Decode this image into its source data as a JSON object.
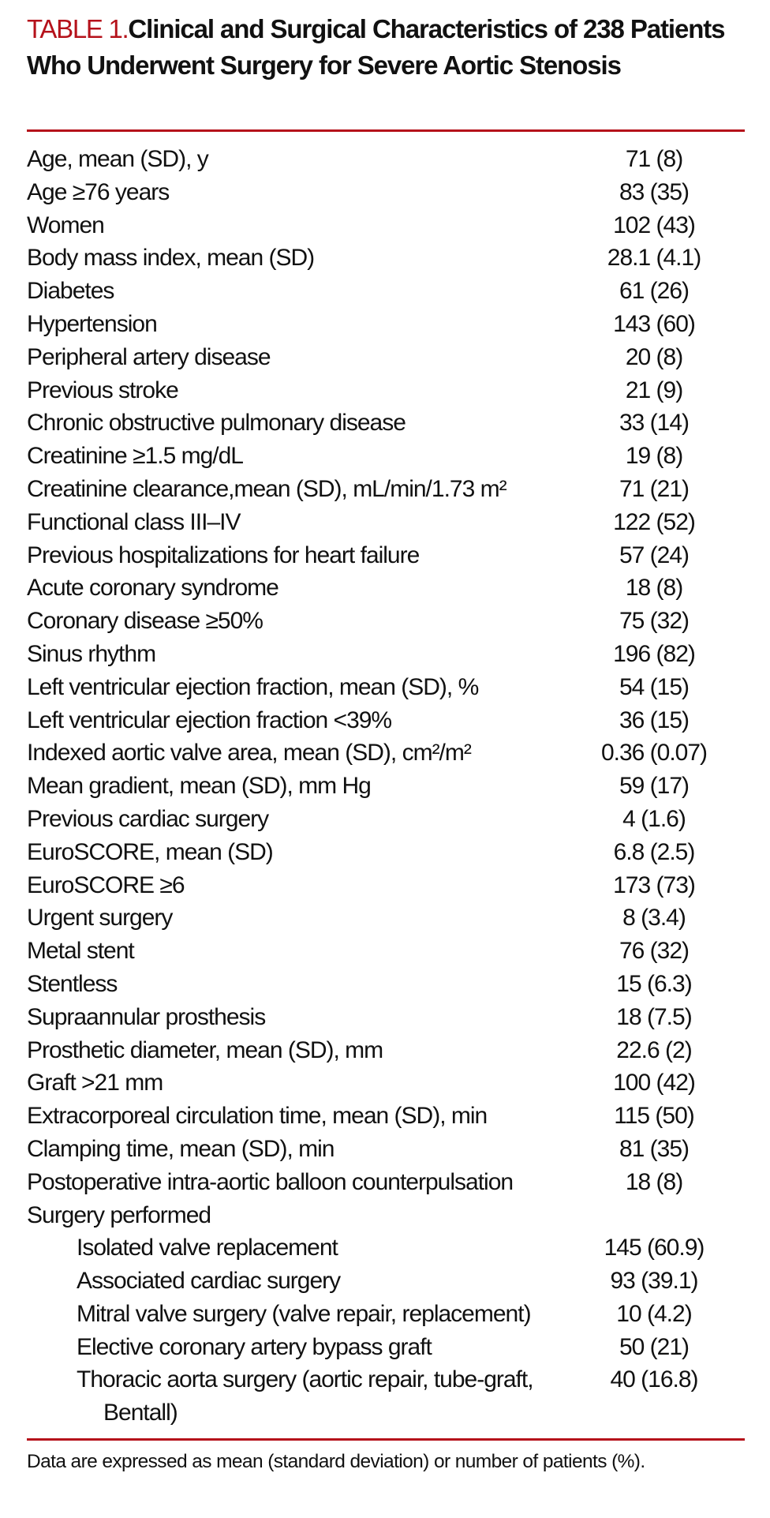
{
  "title": {
    "label": "TABLE 1.",
    "text": "Clinical and Surgical Characteristics of 238 Patients Who Underwent Surgery for Severe Aortic Stenosis"
  },
  "accent_color": "#b5121b",
  "rows": [
    {
      "label": "Age, mean (SD), y",
      "value": "71 (8)"
    },
    {
      "label": "Age ≥76 years",
      "value": "83 (35)"
    },
    {
      "label": "Women",
      "value": "102 (43)"
    },
    {
      "label": "Body mass index, mean (SD)",
      "value": "28.1 (4.1)"
    },
    {
      "label": "Diabetes",
      "value": "61 (26)"
    },
    {
      "label": "Hypertension",
      "value": "143 (60)"
    },
    {
      "label": "Peripheral artery disease",
      "value": "20 (8)"
    },
    {
      "label": "Previous stroke",
      "value": "21 (9)"
    },
    {
      "label": "Chronic obstructive pulmonary disease",
      "value": "33 (14)"
    },
    {
      "label": "Creatinine ≥1.5 mg/dL",
      "value": "19 (8)"
    },
    {
      "label": "Creatinine clearance,mean (SD), mL/min/1.73 m²",
      "value": "71 (21)"
    },
    {
      "label": "Functional class III–IV",
      "value": "122 (52)"
    },
    {
      "label": "Previous hospitalizations for heart failure",
      "value": "57 (24)"
    },
    {
      "label": "Acute coronary syndrome",
      "value": "18 (8)"
    },
    {
      "label": "Coronary disease ≥50%",
      "value": "75 (32)"
    },
    {
      "label": "Sinus rhythm",
      "value": "196 (82)"
    },
    {
      "label": "Left ventricular ejection fraction, mean (SD), %",
      "value": "54 (15)"
    },
    {
      "label": "Left ventricular ejection fraction <39%",
      "value": "36 (15)"
    },
    {
      "label": "Indexed aortic valve area, mean (SD), cm²/m²",
      "value": "0.36 (0.07)"
    },
    {
      "label": "Mean gradient, mean (SD), mm  Hg",
      "value": "59 (17)"
    },
    {
      "label": "Previous cardiac surgery",
      "value": "4 (1.6)"
    },
    {
      "label": "EuroSCORE, mean (SD)",
      "value": "6.8 (2.5)"
    },
    {
      "label": "EuroSCORE ≥6",
      "value": "173 (73)"
    },
    {
      "label": "Urgent surgery",
      "value": "8 (3.4)"
    },
    {
      "label": "Metal stent",
      "value": "76 (32)"
    },
    {
      "label": "Stentless",
      "value": "15 (6.3)"
    },
    {
      "label": "Supraannular prosthesis",
      "value": "18 (7.5)"
    },
    {
      "label": "Prosthetic diameter, mean (SD), mm",
      "value": "22.6 (2)"
    },
    {
      "label": "Graft >21 mm",
      "value": "100 (42)"
    },
    {
      "label": "Extracorporeal circulation time, mean (SD), min",
      "value": "115 (50)"
    },
    {
      "label": "Clamping time, mean (SD), min",
      "value": "81 (35)"
    },
    {
      "label": "Postoperative intra-aortic balloon counterpulsation",
      "value": "18 (8)"
    },
    {
      "label": "Surgery performed",
      "value": ""
    },
    {
      "label": "Isolated valve replacement",
      "value": "145 (60.9)",
      "indent": 1
    },
    {
      "label": "Associated cardiac surgery",
      "value": "93 (39.1)",
      "indent": 1
    },
    {
      "label": "Mitral valve surgery (valve repair, replacement)",
      "value": "10 (4.2)",
      "indent": 1
    },
    {
      "label": "Elective coronary artery bypass graft",
      "value": "50 (21)",
      "indent": 1
    },
    {
      "label": "Thoracic aorta surgery (aortic repair, tube-graft,",
      "value": "40 (16.8)",
      "indent": 1
    },
    {
      "label": "Bentall)",
      "value": "",
      "indent": 2
    }
  ],
  "footnote": "Data are expressed as mean (standard deviation) or number of patients (%)."
}
